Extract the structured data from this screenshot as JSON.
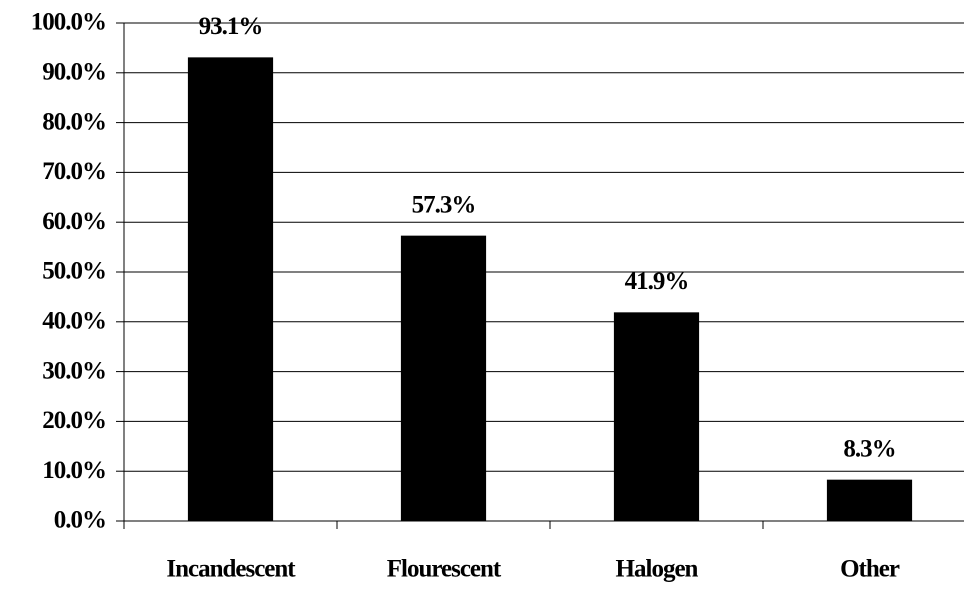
{
  "chart_data": {
    "type": "bar",
    "categories": [
      "Incandescent",
      "Flourescent",
      "Halogen",
      "Other"
    ],
    "values": [
      93.1,
      57.3,
      41.9,
      8.3
    ],
    "value_labels": [
      "93.1%",
      "57.3%",
      "41.9%",
      "8.3%"
    ],
    "color": "#000000",
    "ylim": [
      0,
      100
    ],
    "yticks": [
      {
        "value": 0,
        "label": "0.0%"
      },
      {
        "value": 10,
        "label": "10.0%"
      },
      {
        "value": 20,
        "label": "20.0%"
      },
      {
        "value": 30,
        "label": "30.0%"
      },
      {
        "value": 40,
        "label": "40.0%"
      },
      {
        "value": 50,
        "label": "50.0%"
      },
      {
        "value": 60,
        "label": "60.0%"
      },
      {
        "value": 70,
        "label": "70.0%"
      },
      {
        "value": 80,
        "label": "80.0%"
      },
      {
        "value": 90,
        "label": "90.0%"
      },
      {
        "value": 100,
        "label": "100.0%"
      }
    ],
    "grid": true
  }
}
